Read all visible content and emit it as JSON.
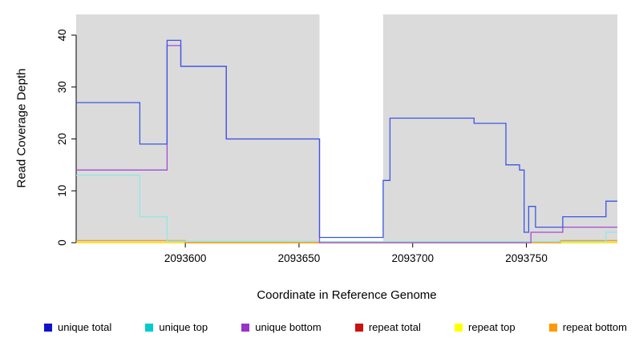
{
  "chart_data": {
    "type": "line",
    "subtype": "step-after",
    "title": "",
    "xlabel": "Coordinate in Reference Genome",
    "ylabel": "Read Coverage Depth",
    "xlim": [
      2093552,
      2093790
    ],
    "ylim": [
      0,
      44
    ],
    "xticks": [
      2093600,
      2093650,
      2093700,
      2093750
    ],
    "yticks": [
      0,
      10,
      20,
      30,
      40
    ],
    "plot_bg": "#DBDBDB",
    "gap_region": [
      2093659,
      2093687
    ],
    "grid": false,
    "legend_position": "bottom",
    "series": [
      {
        "name": "repeat total",
        "color": "#CC2222",
        "points": [
          [
            2093552,
            0
          ],
          [
            2093790,
            0
          ]
        ]
      },
      {
        "name": "repeat top",
        "color": "#FFFF00",
        "points": [
          [
            2093552,
            0
          ],
          [
            2093790,
            0
          ]
        ]
      },
      {
        "name": "repeat bottom",
        "color": "#FF9900",
        "points": [
          [
            2093552,
            0.4
          ],
          [
            2093600,
            0
          ],
          [
            2093765,
            0.4
          ],
          [
            2093790,
            0.4
          ]
        ]
      },
      {
        "name": "unique top",
        "color": "#8FE8E8",
        "points": [
          [
            2093552,
            13
          ],
          [
            2093580,
            5
          ],
          [
            2093592,
            0.3
          ],
          [
            2093659,
            0.2
          ],
          [
            2093785,
            2
          ],
          [
            2093790,
            2
          ]
        ]
      },
      {
        "name": "unique bottom",
        "color": "#A44BD4",
        "points": [
          [
            2093552,
            14
          ],
          [
            2093592,
            38
          ],
          [
            2093598,
            34
          ],
          [
            2093618,
            20
          ],
          [
            2093659,
            0
          ],
          [
            2093752,
            2
          ],
          [
            2093766,
            3
          ],
          [
            2093790,
            3
          ]
        ]
      },
      {
        "name": "unique total",
        "color": "#3A57E2",
        "points": [
          [
            2093552,
            27
          ],
          [
            2093580,
            19
          ],
          [
            2093592,
            39
          ],
          [
            2093598,
            34
          ],
          [
            2093618,
            20
          ],
          [
            2093659,
            1
          ],
          [
            2093687,
            12
          ],
          [
            2093690,
            24
          ],
          [
            2093727,
            23
          ],
          [
            2093741,
            15
          ],
          [
            2093747,
            14
          ],
          [
            2093749,
            2
          ],
          [
            2093751,
            7
          ],
          [
            2093754,
            3
          ],
          [
            2093766,
            5
          ],
          [
            2093785,
            8
          ],
          [
            2093790,
            8
          ]
        ]
      }
    ],
    "legend": [
      {
        "label": "unique total",
        "color": "#1111CC"
      },
      {
        "label": "unique top",
        "color": "#00CCCC"
      },
      {
        "label": "unique bottom",
        "color": "#9933CC"
      },
      {
        "label": "repeat total",
        "color": "#CC1111"
      },
      {
        "label": "repeat top",
        "color": "#FFFF00"
      },
      {
        "label": "repeat bottom",
        "color": "#FF9900"
      }
    ]
  }
}
